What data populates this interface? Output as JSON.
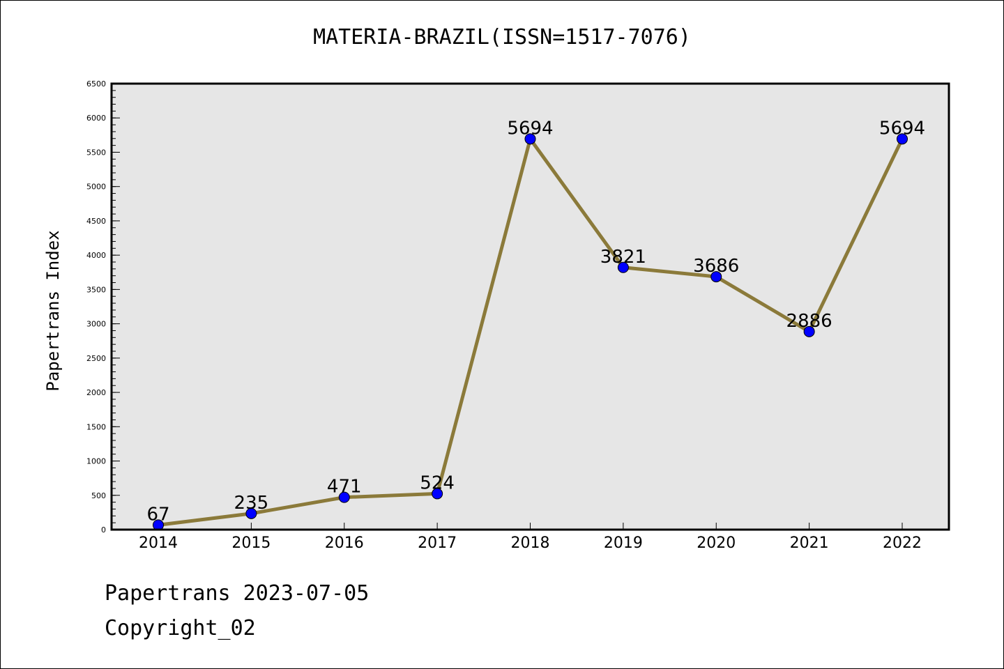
{
  "chart_data": {
    "type": "line",
    "title": "MATERIA-BRAZIL(ISSN=1517-7076)",
    "ylabel": "Papertrans Index",
    "xlabel": "",
    "categories": [
      "2014",
      "2015",
      "2016",
      "2017",
      "2018",
      "2019",
      "2020",
      "2021",
      "2022"
    ],
    "series": [
      {
        "values": [
          67,
          235,
          471,
          524,
          5694,
          3821,
          3686,
          2886,
          5694
        ]
      }
    ],
    "data_labels": [
      "67",
      "235",
      "471",
      "524",
      "5694",
      "3821",
      "3686",
      "2886",
      "5694"
    ],
    "ylim": [
      0,
      6500
    ],
    "yticks": [
      "0",
      "500",
      "1000",
      "1500",
      "2000",
      "2500",
      "3000",
      "3500",
      "4000",
      "4500",
      "5000",
      "5500",
      "6000",
      "6500"
    ],
    "grid": false,
    "legend": "none",
    "colors": {
      "line": "#8b7a3a",
      "marker": "#0000ff",
      "plot_background": "#e6e6e6"
    }
  },
  "footer": {
    "source": "Papertrans 2023-07-05",
    "copyright": "Copyright_02"
  }
}
